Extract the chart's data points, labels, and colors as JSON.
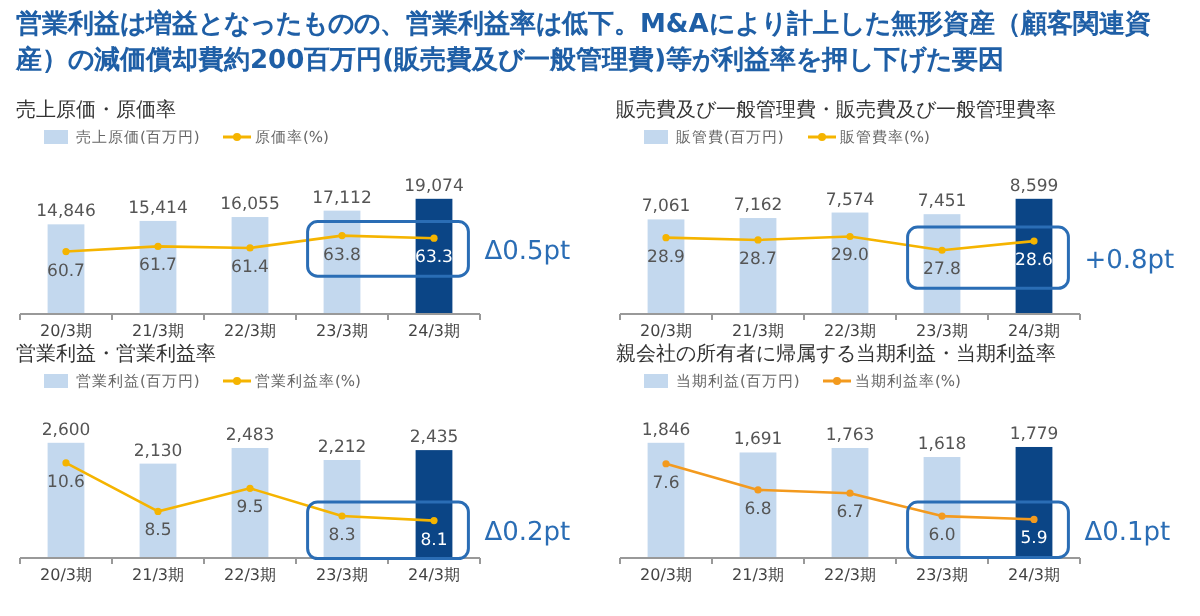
{
  "chart_data": [
    {
      "type": "other",
      "title": "営業利益は増益となったものの、営業利益率は低下。M&Aにより計上した無形資産（顧客関連資産）の減価償却費約200百万円(販売費及び一般管理費)等が利益率を押し下げた要因"
    },
    {
      "type": "bar",
      "title": "売上原価・原価率",
      "categories": [
        "20/3期",
        "21/3期",
        "22/3期",
        "23/3期",
        "24/3期"
      ],
      "tick_labels": "x",
      "legend": "top left",
      "annotations": [
        "Δ0.5pt"
      ],
      "series": [
        {
          "name": "売上原価(百万円)",
          "type": "bar",
          "color": "#c3d8ee",
          "colors": [
            "#c3d8ee",
            "#c3d8ee",
            "#c3d8ee",
            "#c3d8ee",
            "#0b4586"
          ],
          "values": [
            14846,
            15414,
            16055,
            17112,
            19074
          ],
          "value_labels": [
            "14,846",
            "15,414",
            "16,055",
            "17,112",
            "19,074"
          ]
        },
        {
          "name": "原価率(%)",
          "type": "line",
          "axis": "y2",
          "color": "#f5b400",
          "marker": "circle",
          "values": [
            60.7,
            61.7,
            61.4,
            63.8,
            63.3
          ],
          "value_labels": [
            "60.7",
            "61.7",
            "61.4",
            "63.8",
            "63.3"
          ]
        }
      ]
    },
    {
      "type": "bar",
      "title": "販売費及び一般管理費・販売費及び一般管理費率",
      "categories": [
        "20/3期",
        "21/3期",
        "22/3期",
        "23/3期",
        "24/3期"
      ],
      "tick_labels": "x",
      "legend": "top left",
      "annotations": [
        "+0.8pt"
      ],
      "series": [
        {
          "name": "販管費(百万円)",
          "type": "bar",
          "color": "#c3d8ee",
          "colors": [
            "#c3d8ee",
            "#c3d8ee",
            "#c3d8ee",
            "#c3d8ee",
            "#0b4586"
          ],
          "values": [
            7061,
            7162,
            7574,
            7451,
            8599
          ],
          "value_labels": [
            "7,061",
            "7,162",
            "7,574",
            "7,451",
            "8,599"
          ]
        },
        {
          "name": "販管費率(%)",
          "type": "line",
          "axis": "y2",
          "color": "#f5b400",
          "marker": "circle",
          "values": [
            28.9,
            28.7,
            29.0,
            27.8,
            28.6
          ],
          "value_labels": [
            "28.9",
            "28.7",
            "29.0",
            "27.8",
            "28.6"
          ]
        }
      ]
    },
    {
      "type": "bar",
      "title": "営業利益・営業利益率",
      "categories": [
        "20/3期",
        "21/3期",
        "22/3期",
        "23/3期",
        "24/3期"
      ],
      "tick_labels": "x",
      "legend": "top left",
      "annotations": [
        "Δ0.2pt"
      ],
      "series": [
        {
          "name": "営業利益(百万円)",
          "type": "bar",
          "color": "#c3d8ee",
          "colors": [
            "#c3d8ee",
            "#c3d8ee",
            "#c3d8ee",
            "#c3d8ee",
            "#0b4586"
          ],
          "values": [
            2600,
            2130,
            2483,
            2212,
            2435
          ],
          "value_labels": [
            "2,600",
            "2,130",
            "2,483",
            "2,212",
            "2,435"
          ]
        },
        {
          "name": "営業利益率(%)",
          "type": "line",
          "axis": "y2",
          "color": "#f5b400",
          "marker": "circle",
          "values": [
            10.6,
            8.5,
            9.5,
            8.3,
            8.1
          ],
          "value_labels": [
            "10.6",
            "8.5",
            "9.5",
            "8.3",
            "8.1"
          ]
        }
      ]
    },
    {
      "type": "bar",
      "title": "親会社の所有者に帰属する当期利益・当期利益率",
      "categories": [
        "20/3期",
        "21/3期",
        "22/3期",
        "23/3期",
        "24/3期"
      ],
      "tick_labels": "x",
      "legend": "top left",
      "annotations": [
        "Δ0.1pt"
      ],
      "series": [
        {
          "name": "当期利益(百万円)",
          "type": "bar",
          "color": "#c3d8ee",
          "colors": [
            "#c3d8ee",
            "#c3d8ee",
            "#c3d8ee",
            "#c3d8ee",
            "#0b4586"
          ],
          "values": [
            1846,
            1691,
            1763,
            1618,
            1779
          ],
          "value_labels": [
            "1,846",
            "1,691",
            "1,763",
            "1,618",
            "1,779"
          ]
        },
        {
          "name": "当期利益率(%)",
          "type": "line",
          "axis": "y2",
          "color": "#f39a1e",
          "marker": "circle",
          "values": [
            7.6,
            6.8,
            6.7,
            6.0,
            5.9
          ],
          "value_labels": [
            "7.6",
            "6.8",
            "6.7",
            "6.0",
            "5.9"
          ]
        }
      ]
    }
  ]
}
